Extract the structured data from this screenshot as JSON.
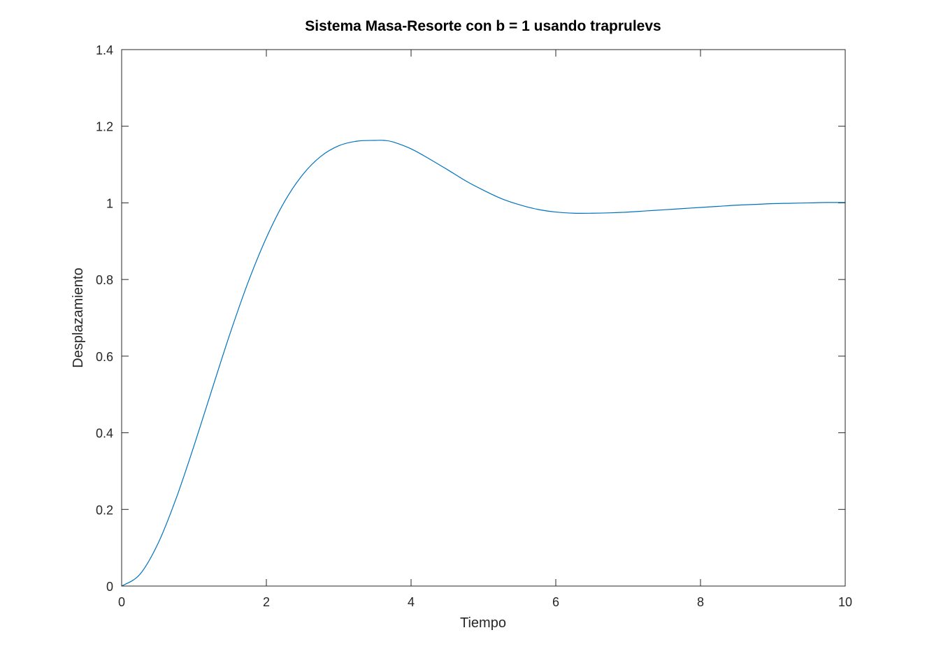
{
  "chart_data": {
    "type": "line",
    "title": "Sistema Masa-Resorte con b = 1 usando traprulevs",
    "xlabel": "Tiempo",
    "ylabel": "Desplazamiento",
    "xlim": [
      0,
      10
    ],
    "ylim": [
      0,
      1.4
    ],
    "xticks": [
      0,
      2,
      4,
      6,
      8,
      10
    ],
    "xtick_labels": [
      "0",
      "2",
      "4",
      "6",
      "8",
      "10"
    ],
    "yticks": [
      0,
      0.2,
      0.4,
      0.6,
      0.8,
      1,
      1.2,
      1.4
    ],
    "ytick_labels": [
      "0",
      "0.2",
      "0.4",
      "0.6",
      "0.8",
      "1",
      "1.2",
      "1.4"
    ],
    "grid": false,
    "line_color": "#0072bd",
    "series": [
      {
        "x": [
          0,
          0.25,
          0.5,
          0.75,
          1,
          1.25,
          1.5,
          1.75,
          2,
          2.25,
          2.5,
          2.75,
          3,
          3.25,
          3.5,
          3.63,
          3.75,
          4,
          4.25,
          4.5,
          4.75,
          5,
          5.25,
          5.5,
          5.75,
          6,
          6.25,
          6.5,
          6.75,
          7,
          7.25,
          7.5,
          7.75,
          8,
          8.25,
          8.5,
          8.75,
          9,
          9.25,
          9.5,
          9.75,
          10
        ],
        "values": [
          0,
          0.03,
          0.11,
          0.227,
          0.366,
          0.514,
          0.66,
          0.794,
          0.909,
          1.003,
          1.073,
          1.121,
          1.149,
          1.161,
          1.163,
          1.163,
          1.159,
          1.141,
          1.115,
          1.087,
          1.058,
          1.033,
          1.011,
          0.995,
          0.983,
          0.976,
          0.973,
          0.973,
          0.974,
          0.976,
          0.979,
          0.982,
          0.985,
          0.988,
          0.991,
          0.994,
          0.996,
          0.998,
          0.999,
          1.0,
          1.001,
          1.001
        ]
      }
    ]
  }
}
